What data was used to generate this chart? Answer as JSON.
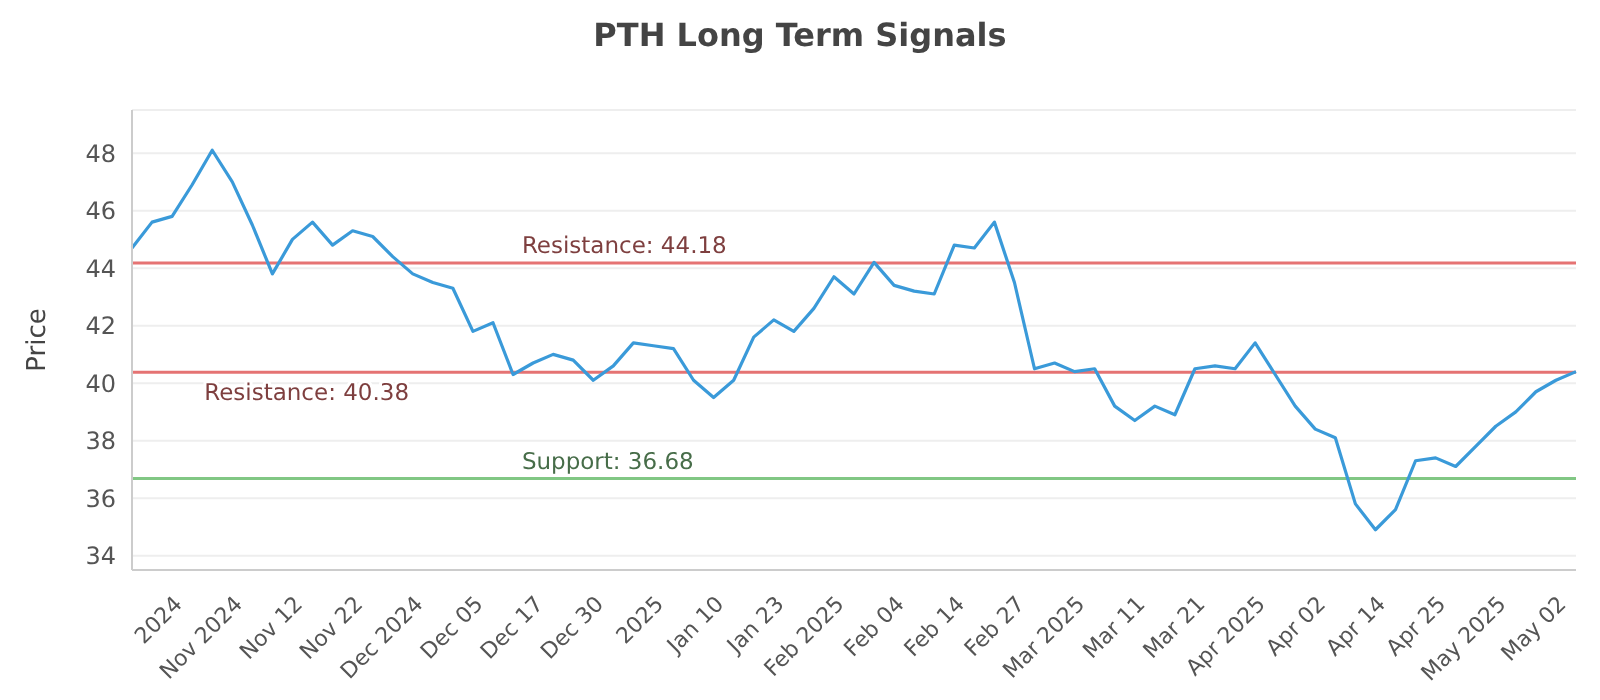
{
  "chart_data": {
    "type": "line",
    "title": "PTH Long Term Signals",
    "ylabel": "Price",
    "categories": [
      null,
      null,
      "2024",
      null,
      null,
      "Nov 2024",
      null,
      null,
      "Nov 12",
      null,
      null,
      "Nov 22",
      null,
      null,
      "Dec 2024",
      null,
      null,
      "Dec 05",
      null,
      null,
      "Dec 17",
      null,
      null,
      "Dec 30",
      null,
      null,
      "2025",
      null,
      null,
      "Jan 10",
      null,
      null,
      "Jan 23",
      null,
      null,
      "Feb 2025",
      null,
      null,
      "Feb 04",
      null,
      null,
      "Feb 14",
      null,
      null,
      "Feb 27",
      null,
      null,
      "Mar 2025",
      null,
      null,
      "Mar 11",
      null,
      null,
      "Mar 21",
      null,
      null,
      "Apr 2025",
      null,
      null,
      "Apr 02",
      null,
      null,
      "Apr 14",
      null,
      null,
      "Apr 25",
      null,
      null,
      "May 2025",
      null,
      null,
      "May 02",
      null
    ],
    "series": [
      {
        "color": "#3a9ad9",
        "values": [
          44.7,
          45.6,
          45.8,
          46.9,
          48.1,
          47.0,
          45.5,
          43.8,
          45.0,
          45.6,
          44.8,
          45.3,
          45.1,
          44.4,
          43.8,
          43.5,
          43.3,
          41.8,
          42.1,
          40.3,
          40.7,
          41.0,
          40.8,
          40.1,
          40.6,
          41.4,
          41.3,
          41.2,
          40.1,
          39.5,
          40.1,
          41.6,
          42.2,
          41.8,
          42.6,
          43.7,
          43.1,
          44.2,
          43.4,
          43.2,
          43.1,
          44.8,
          44.7,
          45.6,
          43.5,
          40.5,
          40.7,
          40.4,
          40.5,
          39.2,
          38.7,
          39.2,
          38.9,
          40.5,
          40.6,
          40.5,
          41.4,
          40.3,
          39.2,
          38.4,
          38.1,
          35.8,
          34.9,
          35.6,
          37.3,
          37.4,
          37.1,
          37.8,
          38.5,
          39.0,
          39.7,
          40.1,
          40.4
        ]
      }
    ],
    "ylim": [
      33.5,
      49.5
    ],
    "yticks": [
      34,
      36,
      38,
      40,
      42,
      44,
      46,
      48
    ],
    "grid": "y",
    "marker": "none",
    "line_style": "solid",
    "ref_lines": [
      {
        "axis": "y",
        "value": 44.18,
        "label": "Resistance: 44.18",
        "color": "#e57373"
      },
      {
        "axis": "y",
        "value": 40.38,
        "label": "Resistance: 40.38",
        "color": "#e57373"
      },
      {
        "axis": "y",
        "value": 36.68,
        "label": "Support: 36.68",
        "color": "#81c784"
      }
    ]
  }
}
